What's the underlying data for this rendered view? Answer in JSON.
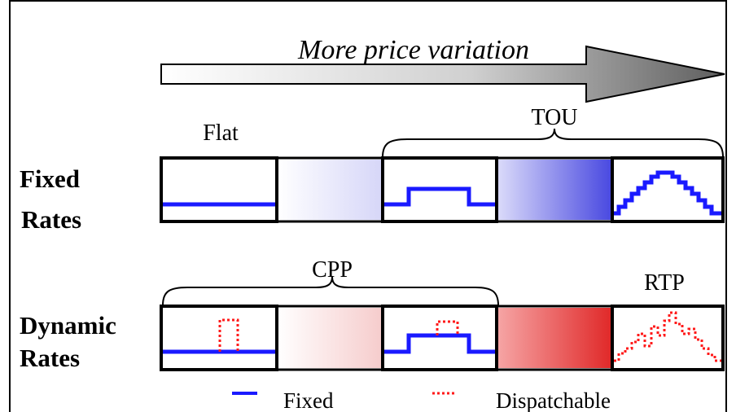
{
  "arrow": {
    "label": "More price variation"
  },
  "rows": {
    "fixed": {
      "label_line1": "Fixed",
      "label_line2": "Rates"
    },
    "dynamic": {
      "label_line1": "Dynamic",
      "label_line2": "Rates"
    }
  },
  "group_labels": {
    "flat": "Flat",
    "tou": "TOU",
    "cpp": "CPP",
    "rtp": "RTP"
  },
  "legend": {
    "fixed": "Fixed",
    "dispatchable": "Dispatchable"
  },
  "colors": {
    "fixed_line": "#1a1aff",
    "dispatchable_line": "#ff1a1a",
    "fixed_gradient": "#5a5ae6",
    "dynamic_gradient": "#e63a3a",
    "arrow_dark": "#6e6e6e",
    "frame": "#000000"
  }
}
